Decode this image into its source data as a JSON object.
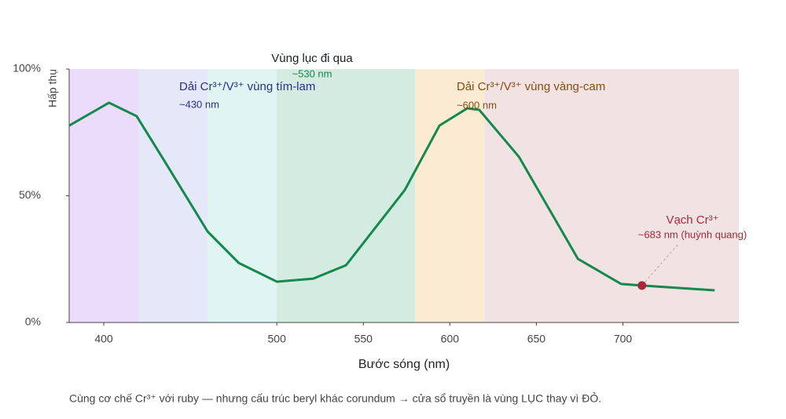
{
  "chart_data": {
    "type": "line",
    "x_label": "Bước sóng (nm)",
    "y_label": "Hấp thụ",
    "footnote": "Cùng cơ chế Cr³⁺ với ruby — nhưng cấu trúc beryl khác corundum → cửa sổ truyền là vùng LỤC thay vì ĐỎ.",
    "xlim": [
      380,
      767
    ],
    "xticks": [
      400,
      500,
      550,
      600,
      650,
      700
    ],
    "ylim": [
      0,
      100
    ],
    "yticks": [
      {
        "value": 0,
        "label": "0%"
      },
      {
        "value": 50,
        "label": "50%"
      },
      {
        "value": 100,
        "label": "100%"
      }
    ],
    "bands": [
      {
        "from": 380,
        "to": 420,
        "color": "#ecdcfb"
      },
      {
        "from": 420,
        "to": 460,
        "color": "#e4e8f8"
      },
      {
        "from": 460,
        "to": 500,
        "color": "#e0f4f2"
      },
      {
        "from": 500,
        "to": 580,
        "color": "#d3ebe0"
      },
      {
        "from": 580,
        "to": 620,
        "color": "#fbebd3"
      },
      {
        "from": 620,
        "to": 767,
        "color": "#f1e3e3"
      }
    ],
    "series": [
      {
        "name": "Hấp thụ",
        "color": "#13894b",
        "x": [
          380,
          403,
          419,
          435,
          460,
          478,
          500,
          521,
          540,
          574,
          594,
          610,
          617,
          640,
          674,
          699,
          711,
          753
        ],
        "values": [
          77.7,
          86.7,
          81.4,
          63.8,
          35.9,
          23.5,
          16.1,
          17.3,
          22.6,
          52.3,
          77.7,
          84.5,
          83.9,
          65.3,
          25.1,
          15.2,
          14.6,
          12.7
        ]
      }
    ],
    "marker": {
      "x": 711,
      "value": 14.6,
      "color": "#a8283a"
    },
    "annotations": [
      {
        "title": "Vùng lục đi qua",
        "sub": "~530 nm",
        "color": "#17202a",
        "sub_color": "#13894b"
      },
      {
        "title": "Dải Cr³⁺/V³⁺ vùng tím-lam",
        "sub": "~430 nm",
        "color": "#2b2f8a",
        "sub_color": "#2b2f8a"
      },
      {
        "title": "Dải Cr³⁺/V³⁺ vùng vàng-cam",
        "sub": "~600 nm",
        "color": "#8a4b10",
        "sub_color": "#8a4b10"
      },
      {
        "title": "Vạch Cr³⁺",
        "sub": "~683 nm (huỳnh quang)",
        "color": "#a8283a",
        "sub_color": "#a8283a"
      }
    ]
  }
}
